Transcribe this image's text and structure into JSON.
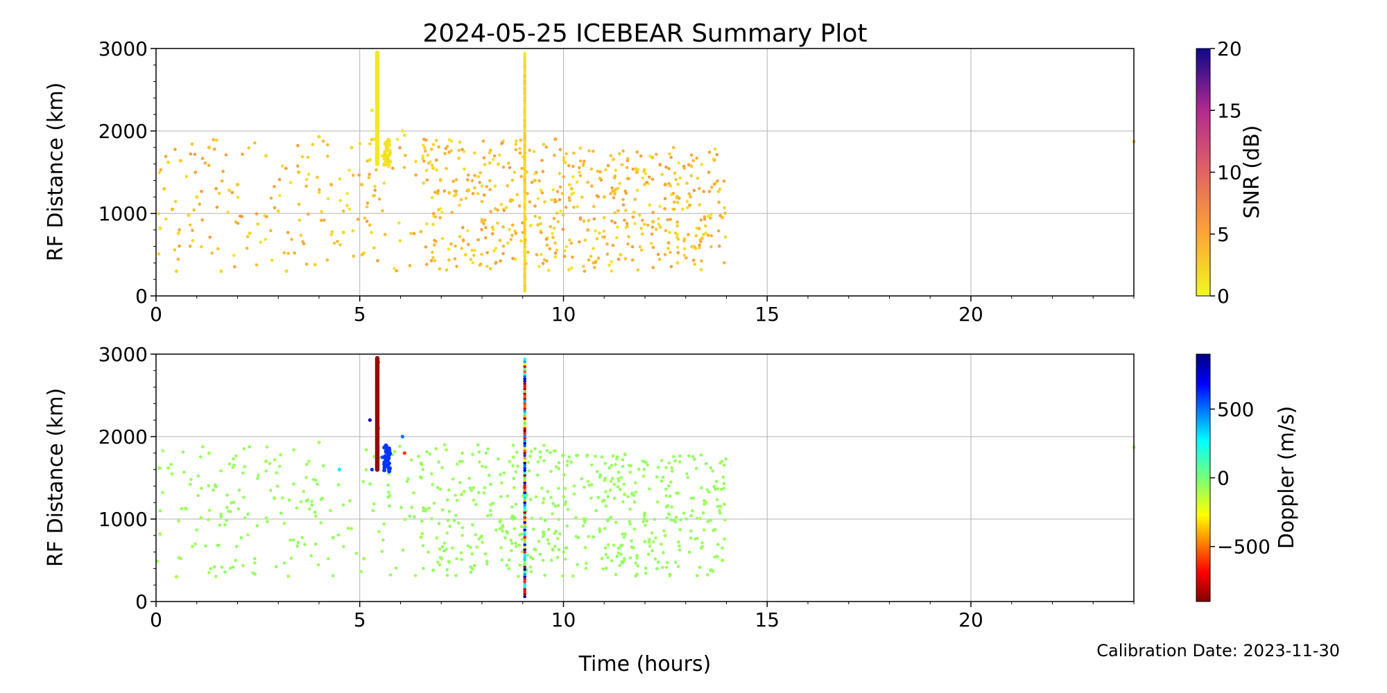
{
  "chart_data": [
    {
      "type": "scatter",
      "title": "2024-05-25 ICEBEAR Summary Plot",
      "xlabel": "",
      "ylabel": "RF Distance (km)",
      "xlim": [
        0,
        24
      ],
      "ylim": [
        0,
        3000
      ],
      "xticks": [
        0,
        5,
        10,
        15,
        20
      ],
      "yticks": [
        0,
        1000,
        2000,
        3000
      ],
      "grid": true,
      "colorbar": {
        "label": "SNR (dB)",
        "range": [
          0,
          20
        ],
        "ticks": [
          0,
          5,
          10,
          15,
          20
        ],
        "colormap": "plasma_r"
      },
      "series": [
        {
          "points": [
            [
              0.1,
              820,
              2
            ],
            [
              0.2,
              1300,
              3
            ],
            [
              0.3,
              1620,
              2
            ],
            [
              0.4,
              1050,
              4
            ],
            [
              0.55,
              760,
              2
            ],
            [
              0.6,
              1640,
              3
            ],
            [
              0.5,
              300,
              2
            ],
            [
              0.8,
              980,
              2
            ],
            [
              1.0,
              1200,
              2
            ],
            [
              1.3,
              1800,
              3
            ],
            [
              1.6,
              300,
              2
            ],
            [
              1.8,
              1280,
              2
            ],
            [
              2.0,
              1350,
              3
            ],
            [
              2.3,
              760,
              2
            ],
            [
              2.7,
              1700,
              2
            ],
            [
              3.0,
              1030,
              2
            ],
            [
              3.2,
              300,
              2
            ],
            [
              3.5,
              1500,
              3
            ],
            [
              3.9,
              380,
              2
            ],
            [
              4.0,
              1930,
              2
            ],
            [
              4.3,
              1350,
              4
            ],
            [
              4.6,
              770,
              2
            ],
            [
              4.8,
              1800,
              2
            ],
            [
              5.05,
              1350,
              3
            ],
            [
              5.1,
              520,
              2
            ],
            [
              5.25,
              1650,
              1
            ],
            [
              5.3,
              2250,
              1
            ],
            [
              5.35,
              1900,
              1
            ],
            [
              5.55,
              1700,
              1
            ],
            [
              5.65,
              1600,
              1
            ],
            [
              6.05,
              2000,
              1
            ],
            [
              6.1,
              1950,
              1
            ],
            [
              6.5,
              780,
              3
            ],
            [
              6.8,
              1550,
              2
            ],
            [
              7.2,
              1250,
              3
            ],
            [
              7.6,
              500,
              2
            ],
            [
              8.0,
              900,
              3
            ],
            [
              8.4,
              1600,
              2
            ],
            [
              8.7,
              1150,
              4
            ],
            [
              9.3,
              1400,
              3
            ],
            [
              9.6,
              700,
              2
            ],
            [
              9.8,
              1900,
              5
            ],
            [
              10.2,
              1300,
              3
            ],
            [
              10.6,
              800,
              4
            ],
            [
              11.0,
              1200,
              3
            ],
            [
              11.4,
              500,
              2
            ],
            [
              11.8,
              1500,
              4
            ],
            [
              12.2,
              900,
              3
            ],
            [
              12.5,
              1350,
              5
            ],
            [
              12.8,
              400,
              2
            ],
            [
              13.1,
              1100,
              4
            ],
            [
              13.4,
              700,
              3
            ],
            [
              13.7,
              1650,
              5
            ],
            [
              13.9,
              950,
              3
            ],
            [
              24.0,
              1870,
              3
            ]
          ]
        }
      ]
    },
    {
      "type": "scatter",
      "title": "",
      "xlabel": "Time (hours)",
      "ylabel": "RF Distance (km)",
      "xlim": [
        0,
        24
      ],
      "ylim": [
        0,
        3000
      ],
      "xticks": [
        0,
        5,
        10,
        15,
        20
      ],
      "yticks": [
        0,
        1000,
        2000,
        3000
      ],
      "grid": true,
      "colorbar": {
        "label": "Doppler (m/s)",
        "range": [
          -900,
          900
        ],
        "ticks": [
          -500,
          0,
          500
        ],
        "colormap": "jet_r"
      },
      "series": [
        {
          "points": [
            [
              0.1,
              820,
              -100
            ],
            [
              0.3,
              1620,
              -100
            ],
            [
              0.5,
              300,
              -100
            ],
            [
              1.3,
              1800,
              -100
            ],
            [
              2.7,
              1700,
              -100
            ],
            [
              4.0,
              1930,
              -100
            ],
            [
              4.5,
              1600,
              300
            ],
            [
              5.1,
              520,
              -100
            ],
            [
              5.25,
              2200,
              800
            ],
            [
              5.3,
              1600,
              600
            ],
            [
              5.45,
              2900,
              -850
            ],
            [
              5.45,
              2100,
              -850
            ],
            [
              5.55,
              1750,
              550
            ],
            [
              5.7,
              1650,
              550
            ],
            [
              6.05,
              2000,
              500
            ],
            [
              6.1,
              1800,
              -600
            ],
            [
              6.5,
              780,
              -100
            ],
            [
              7.5,
              1300,
              -100
            ],
            [
              8.5,
              900,
              -100
            ],
            [
              9.5,
              1200,
              -100
            ],
            [
              10.5,
              1000,
              -100
            ],
            [
              11.5,
              1300,
              -100
            ],
            [
              12.5,
              800,
              -100
            ],
            [
              13.5,
              1200,
              -100
            ],
            [
              13.9,
              500,
              -100
            ],
            [
              24.0,
              1870,
              -100
            ]
          ]
        }
      ]
    }
  ],
  "footer": {
    "calibration": "Calibration Date: 2023-11-30"
  }
}
